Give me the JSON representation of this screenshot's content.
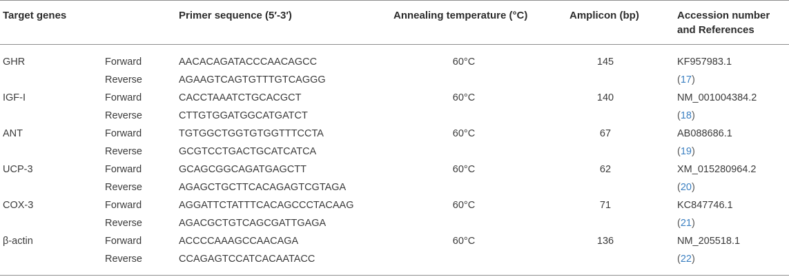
{
  "headers": {
    "target_genes": "Target genes",
    "primer_sequence": "Primer sequence (5′-3′)",
    "annealing": "Annealing temperature (°C)",
    "amplicon": "Amplicon (bp)",
    "accession_line1": "Accession number",
    "accession_line2": "and References"
  },
  "rows": [
    {
      "gene": "GHR",
      "forward_label": "Forward",
      "reverse_label": "Reverse",
      "forward_seq": "AACACAGATACCCAACAGCC",
      "reverse_seq": "AGAAGTCAGTGTTTGTCAGGG",
      "annealing": "60°C",
      "amplicon": "145",
      "accession": "KF957983.1",
      "reference": "17"
    },
    {
      "gene": "IGF-I",
      "forward_label": "Forward",
      "reverse_label": "Reverse",
      "forward_seq": "CACCTAAATCTGCACGCT",
      "reverse_seq": "CTTGTGGATGGCATGATCT",
      "annealing": "60°C",
      "amplicon": "140",
      "accession": "NM_001004384.2",
      "reference": "18"
    },
    {
      "gene": "ANT",
      "forward_label": "Forward",
      "reverse_label": "Reverse",
      "forward_seq": "TGTGGCTGGTGTGGTTTCCTA",
      "reverse_seq": "GCGTCCTGACTGCATCATCA",
      "annealing": "60°C",
      "amplicon": "67",
      "accession": "AB088686.1",
      "reference": "19"
    },
    {
      "gene": "UCP-3",
      "forward_label": "Forward",
      "reverse_label": "Reverse",
      "forward_seq": "GCAGCGGCAGATGAGCTT",
      "reverse_seq": "AGAGCTGCTTCACAGAGTCGTAGA",
      "annealing": "60°C",
      "amplicon": "62",
      "accession": "XM_015280964.2",
      "reference": "20"
    },
    {
      "gene": "COX-3",
      "forward_label": "Forward",
      "reverse_label": "Reverse",
      "forward_seq": "AGGATTCTATTTCACAGCCCTACAAG",
      "reverse_seq": "AGACGCTGTCAGCGATTGAGA",
      "annealing": "60°C",
      "amplicon": "71",
      "accession": "KC847746.1",
      "reference": "21"
    },
    {
      "gene": "β-actin",
      "forward_label": "Forward",
      "reverse_label": "Reverse",
      "forward_seq": "ACCCCAAAGCCAACAGA",
      "reverse_seq": "CCAGAGTCCATCACAATACC",
      "annealing": "60°C",
      "amplicon": "136",
      "accession": "NM_205518.1",
      "reference": "22"
    }
  ],
  "colors": {
    "text": "#3a3a3a",
    "rule": "#8c8c8c",
    "reference_link": "#3a7fc1"
  }
}
